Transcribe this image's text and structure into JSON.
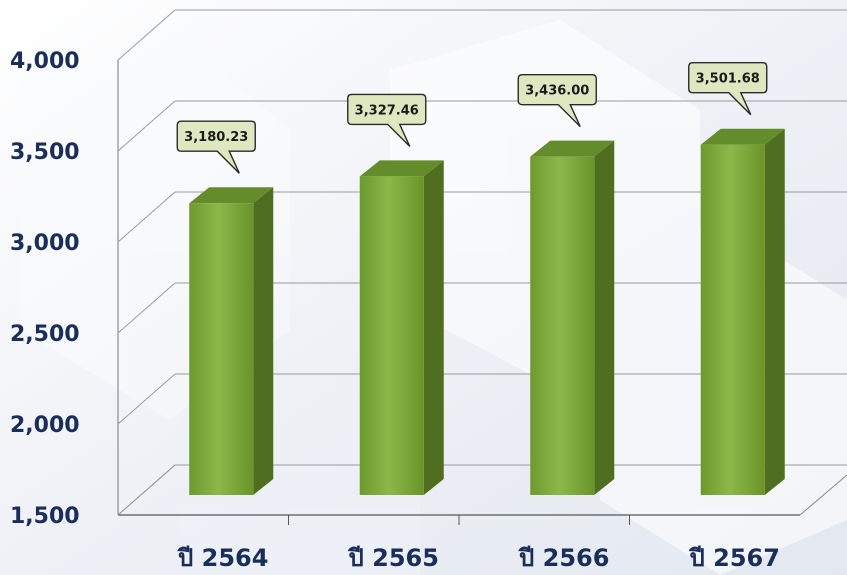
{
  "chart_data": {
    "type": "bar",
    "categories": [
      "ปี 2564",
      "ปี 2565",
      "ปี 2566",
      "ปี 2567"
    ],
    "values": [
      3180.23,
      3327.46,
      3436.0,
      3501.68
    ],
    "value_labels": [
      "3,180.23",
      "3,327.46",
      "3,436.00",
      "3,501.68"
    ],
    "y_ticks": [
      "1,500",
      "2,000",
      "2,500",
      "3,000",
      "3,500",
      "4,000"
    ],
    "ylim": [
      1500,
      4000
    ],
    "grid": true,
    "colors": {
      "bar_front": "#7aa535",
      "bar_side": "#4f6e1f",
      "bar_top": "#658c2a",
      "callout_fill": "#dde8c0",
      "axis_text": "#1a2e5c"
    }
  }
}
